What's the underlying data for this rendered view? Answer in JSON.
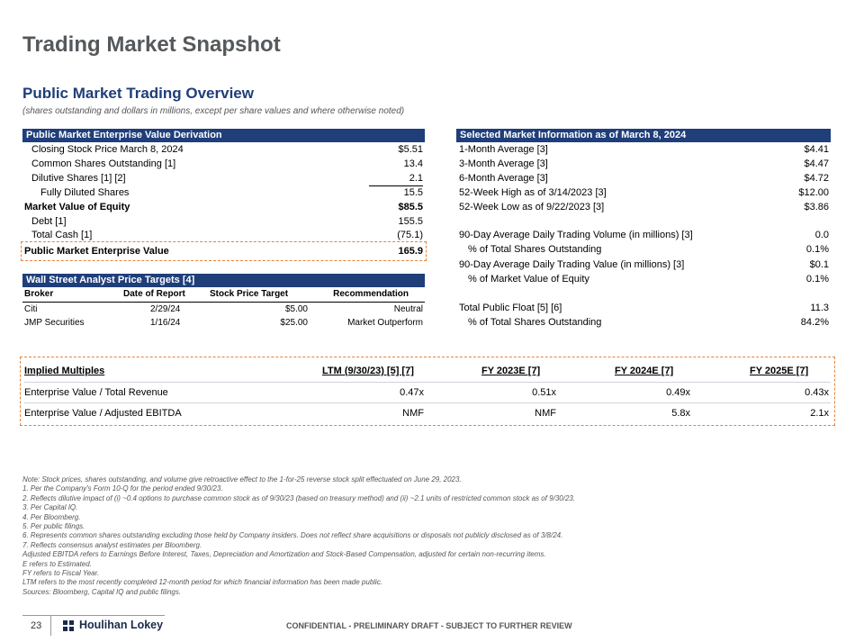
{
  "page": {
    "title": "Trading Market Snapshot",
    "section_title": "Public Market Trading Overview",
    "section_subtitle": "(shares outstanding and dollars in millions, except per share values and where otherwise noted)"
  },
  "ev_derivation": {
    "header": "Public Market Enterprise Value Derivation",
    "rows": [
      {
        "label": "Closing Stock Price March 8, 2024",
        "value": "$5.51"
      },
      {
        "label": "Common Shares Outstanding [1]",
        "value": "13.4"
      },
      {
        "label": "Dilutive Shares [1] [2]",
        "value": "2.1"
      },
      {
        "label": "Fully Diluted Shares",
        "value": "15.5"
      },
      {
        "label": "Market Value of Equity",
        "value": "$85.5"
      },
      {
        "label": "Debt [1]",
        "value": "155.5"
      },
      {
        "label": "Total Cash [1]",
        "value": "(75.1)"
      },
      {
        "label": "Public Market Enterprise Value",
        "value": "165.9"
      }
    ]
  },
  "market_info": {
    "header": "Selected Market Information as of March 8, 2024",
    "rows": [
      {
        "label": "1-Month Average [3]",
        "value": "$4.41"
      },
      {
        "label": "3-Month Average [3]",
        "value": "$4.47"
      },
      {
        "label": "6-Month Average [3]",
        "value": "$4.72"
      },
      {
        "label": "52-Week High as of 3/14/2023 [3]",
        "value": "$12.00"
      },
      {
        "label": "52-Week Low as of 9/22/2023 [3]",
        "value": "$3.86"
      },
      {
        "label": "90-Day Average Daily Trading Volume (in millions) [3]",
        "value": "0.0"
      },
      {
        "label": "% of Total Shares Outstanding",
        "value": "0.1%"
      },
      {
        "label": "90-Day Average Daily Trading Value (in millions) [3]",
        "value": "$0.1"
      },
      {
        "label": "% of Market Value of Equity",
        "value": "0.1%"
      },
      {
        "label": "Total Public Float [5] [6]",
        "value": "11.3"
      },
      {
        "label": "% of Total Shares Outstanding",
        "value": "84.2%"
      }
    ]
  },
  "analyst": {
    "header": "Wall Street Analyst Price Targets [4]",
    "columns": [
      "Broker",
      "Date of Report",
      "Stock Price Target",
      "Recommendation"
    ],
    "rows": [
      {
        "broker": "Citi",
        "date": "2/29/24",
        "target": "$5.00",
        "rec": "Neutral"
      },
      {
        "broker": "JMP Securities",
        "date": "1/16/24",
        "target": "$25.00",
        "rec": "Market Outperform"
      }
    ]
  },
  "multiples": {
    "columns": [
      "Implied Multiples",
      "LTM (9/30/23) [5] [7]",
      "FY 2023E [7]",
      "FY 2024E [7]",
      "FY 2025E [7]"
    ],
    "rows": [
      {
        "label": "Enterprise Value / Total Revenue",
        "v1": "0.47x",
        "v2": "0.51x",
        "v3": "0.49x",
        "v4": "0.43x"
      },
      {
        "label": "Enterprise Value / Adjusted EBITDA",
        "v1": "NMF",
        "v2": "NMF",
        "v3": "5.8x",
        "v4": "2.1x"
      }
    ]
  },
  "notes": [
    "Note: Stock prices, shares outstanding, and volume give retroactive effect to the 1-for-25 reverse stock split effectuated on June 29, 2023.",
    "1.  Per the Company's Form 10-Q for the period ended 9/30/23.",
    "2.  Reflects dilutive impact of (i) ~0.4 options to purchase common stock as of 9/30/23 (based on treasury method) and (ii) ~2.1 units of restricted common stock as of 9/30/23.",
    "3.  Per Capital IQ.",
    "4.  Per Bloomberg.",
    "5.  Per public filings.",
    "6.  Represents common shares outstanding excluding those held by Company insiders. Does not reflect share acquisitions or disposals not publicly disclosed as of 3/8/24.",
    "7.  Reflects consensus analyst estimates per Bloomberg.",
    "Adjusted EBITDA refers to Earnings Before Interest, Taxes, Depreciation and Amortization and Stock-Based Compensation, adjusted for certain non-recurring items.",
    "E refers to Estimated.",
    "FY refers to Fiscal Year.",
    "LTM refers to the most recently completed 12-month period for which financial information has been made public.",
    "Sources: Bloomberg, Capital IQ and public filings."
  ],
  "footer": {
    "page_number": "23",
    "logo_text": "Houlihan Lokey",
    "confidential": "CONFIDENTIAL - PRELIMINARY DRAFT - SUBJECT TO FURTHER REVIEW"
  },
  "colors": {
    "header_bar": "#1f3e7a",
    "dashed_border": "#e8823a",
    "title_gray": "#55595c"
  }
}
